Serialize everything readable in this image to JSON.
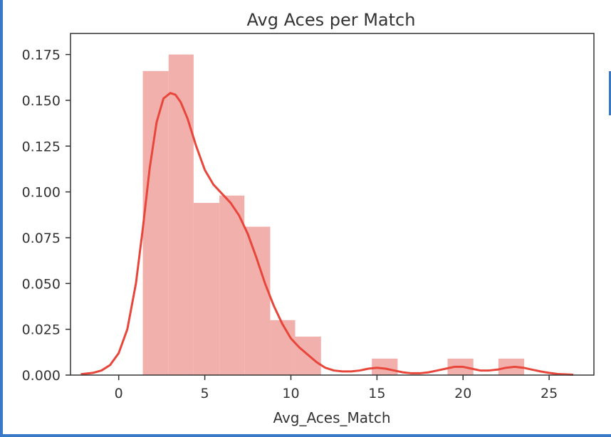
{
  "chart_data": {
    "type": "histogram",
    "title": "Avg Aces per Match",
    "xlabel": "Avg_Aces_Match",
    "ylabel": "",
    "xlim": [
      -2.8,
      27.6
    ],
    "ylim": [
      0,
      0.1865
    ],
    "x_ticks": [
      0,
      5,
      10,
      15,
      20,
      25
    ],
    "y_ticks": [
      0.0,
      0.025,
      0.05,
      0.075,
      0.1,
      0.125,
      0.15,
      0.175
    ],
    "bar_color": "#f2b0ac",
    "line_color": "#e8463a",
    "bins": [
      {
        "x0": 1.4,
        "x1": 2.9,
        "value": 0.166
      },
      {
        "x0": 2.9,
        "x1": 4.35,
        "value": 0.175
      },
      {
        "x0": 4.35,
        "x1": 5.85,
        "value": 0.094
      },
      {
        "x0": 5.85,
        "x1": 7.3,
        "value": 0.098
      },
      {
        "x0": 7.3,
        "x1": 8.8,
        "value": 0.081
      },
      {
        "x0": 8.8,
        "x1": 10.25,
        "value": 0.03
      },
      {
        "x0": 10.25,
        "x1": 11.75,
        "value": 0.021
      },
      {
        "x0": 14.7,
        "x1": 16.2,
        "value": 0.009
      },
      {
        "x0": 19.1,
        "x1": 20.6,
        "value": 0.009
      },
      {
        "x0": 22.05,
        "x1": 23.55,
        "value": 0.009
      }
    ],
    "kde": {
      "x": [
        -2.2,
        -1.5,
        -1.0,
        -0.5,
        0.0,
        0.5,
        1.0,
        1.4,
        1.8,
        2.2,
        2.6,
        3.0,
        3.3,
        3.6,
        4.0,
        4.5,
        5.0,
        5.5,
        6.0,
        6.5,
        7.0,
        7.5,
        8.0,
        8.5,
        9.0,
        9.5,
        10.0,
        10.5,
        11.0,
        11.5,
        12.0,
        12.5,
        13.0,
        13.5,
        14.0,
        14.5,
        15.0,
        15.5,
        16.0,
        16.5,
        17.0,
        17.5,
        18.0,
        18.5,
        19.0,
        19.5,
        20.0,
        20.5,
        21.0,
        21.5,
        22.0,
        22.5,
        23.0,
        23.5,
        24.0,
        24.5,
        25.0,
        25.5,
        26.4
      ],
      "y": [
        0.0005,
        0.0012,
        0.0025,
        0.0055,
        0.012,
        0.025,
        0.05,
        0.08,
        0.113,
        0.138,
        0.151,
        0.154,
        0.153,
        0.149,
        0.14,
        0.125,
        0.112,
        0.104,
        0.099,
        0.094,
        0.087,
        0.077,
        0.064,
        0.05,
        0.038,
        0.028,
        0.02,
        0.015,
        0.011,
        0.007,
        0.004,
        0.0025,
        0.002,
        0.002,
        0.0025,
        0.0035,
        0.004,
        0.0035,
        0.0025,
        0.0015,
        0.001,
        0.001,
        0.0015,
        0.0025,
        0.0035,
        0.0045,
        0.0045,
        0.0035,
        0.0025,
        0.0025,
        0.003,
        0.004,
        0.0045,
        0.004,
        0.003,
        0.002,
        0.0012,
        0.0006,
        0.0002
      ]
    }
  }
}
